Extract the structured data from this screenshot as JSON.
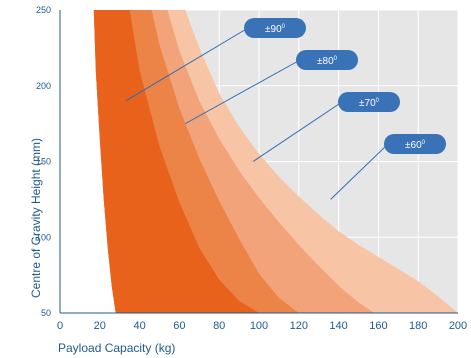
{
  "chart_data": {
    "type": "area",
    "xlabel": "Payload Capacity (kg)",
    "ylabel": "Centre of Gravity Height (mm)",
    "xlim": [
      0,
      200
    ],
    "ylim": [
      50,
      250
    ],
    "x_ticks": [
      "0",
      "20",
      "40",
      "60",
      "80",
      "100",
      "120",
      "140",
      "160",
      "180",
      "200"
    ],
    "y_ticks": [
      "50",
      "100",
      "150",
      "200",
      "250"
    ],
    "grid": true,
    "series": [
      {
        "name": "±60",
        "color": "#f8c4a6",
        "points": [
          [
            63,
            250
          ],
          [
            70,
            225
          ],
          [
            80,
            195
          ],
          [
            90,
            173
          ],
          [
            100,
            155
          ],
          [
            110,
            140
          ],
          [
            120,
            127
          ],
          [
            130,
            115
          ],
          [
            140,
            104
          ],
          [
            150,
            95
          ],
          [
            160,
            87
          ],
          [
            170,
            79
          ],
          [
            180,
            71
          ],
          [
            190,
            61
          ],
          [
            200,
            50
          ]
        ]
      },
      {
        "name": "±70",
        "color": "#f3a37a",
        "points": [
          [
            54,
            250
          ],
          [
            60,
            223
          ],
          [
            70,
            190
          ],
          [
            80,
            165
          ],
          [
            90,
            144
          ],
          [
            100,
            126
          ],
          [
            110,
            110
          ],
          [
            120,
            95
          ],
          [
            130,
            81
          ],
          [
            140,
            68
          ],
          [
            150,
            57
          ],
          [
            158,
            50
          ]
        ]
      },
      {
        "name": "±80",
        "color": "#ec8347",
        "points": [
          [
            46,
            250
          ],
          [
            50,
            227
          ],
          [
            60,
            185
          ],
          [
            70,
            152
          ],
          [
            80,
            124
          ],
          [
            90,
            99
          ],
          [
            100,
            76
          ],
          [
            110,
            60
          ],
          [
            120,
            50
          ]
        ]
      },
      {
        "name": "±90",
        "color": "#e8621c",
        "points": [
          [
            35,
            250
          ],
          [
            40,
            210
          ],
          [
            50,
            160
          ],
          [
            60,
            123
          ],
          [
            70,
            93
          ],
          [
            80,
            72
          ],
          [
            90,
            58
          ],
          [
            100,
            50
          ]
        ]
      }
    ],
    "inner_boundary": {
      "points": [
        [
          17,
          250
        ],
        [
          18,
          210
        ],
        [
          20,
          165
        ],
        [
          22,
          125
        ],
        [
          24,
          93
        ],
        [
          26,
          68
        ],
        [
          28,
          50
        ]
      ]
    },
    "callouts": [
      {
        "text": "±90",
        "superscript": "0",
        "points_to": [
          33,
          190
        ]
      },
      {
        "text": "±80",
        "superscript": "0",
        "points_to": [
          63,
          175
        ]
      },
      {
        "text": "±70",
        "superscript": "0",
        "points_to": [
          97,
          150
        ]
      },
      {
        "text": "±60",
        "superscript": "0",
        "points_to": [
          136,
          125
        ]
      }
    ]
  }
}
